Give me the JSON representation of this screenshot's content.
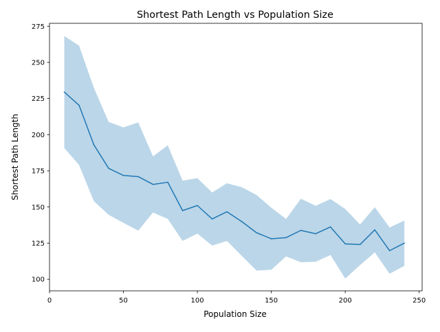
{
  "chart_data": {
    "type": "line",
    "title": "Shortest Path Length vs Population Size",
    "xlabel": "Population Size",
    "ylabel": "Shortest Path Length",
    "xlim": [
      0,
      252
    ],
    "ylim": [
      92,
      277
    ],
    "xticks": [
      0,
      50,
      100,
      150,
      200,
      250
    ],
    "yticks": [
      100,
      125,
      150,
      175,
      200,
      225,
      250,
      275
    ],
    "grid": false,
    "legend": "none",
    "colors": {
      "line": "#1f77b4",
      "band": "#1f77b4",
      "band_opacity": 0.3
    },
    "x": [
      10,
      20,
      30,
      40,
      50,
      60,
      70,
      80,
      90,
      100,
      110,
      120,
      130,
      140,
      150,
      160,
      170,
      180,
      190,
      200,
      210,
      220,
      230,
      240
    ],
    "series": [
      {
        "values": [
          229.5,
          220.3,
          193.0,
          176.7,
          171.8,
          171.0,
          165.6,
          167.1,
          147.5,
          151.0,
          141.7,
          146.7,
          139.9,
          132.2,
          128.0,
          128.8,
          133.8,
          131.5,
          136.2,
          124.5,
          124.0,
          134.2,
          119.8,
          125.0
        ],
        "upper": [
          268.2,
          261.5,
          232.4,
          208.8,
          205.0,
          208.5,
          185.0,
          192.6,
          168.2,
          169.9,
          160.0,
          166.4,
          163.7,
          158.3,
          149.5,
          141.7,
          155.7,
          150.8,
          155.5,
          148.6,
          137.9,
          149.8,
          135.8,
          140.6
        ],
        "lower": [
          190.8,
          179.0,
          154.0,
          144.6,
          139.0,
          133.6,
          146.2,
          141.7,
          126.5,
          131.6,
          123.3,
          126.5,
          116.2,
          106.0,
          106.6,
          115.8,
          111.8,
          112.1,
          116.8,
          100.5,
          109.8,
          118.6,
          103.8,
          109.3
        ]
      }
    ]
  }
}
